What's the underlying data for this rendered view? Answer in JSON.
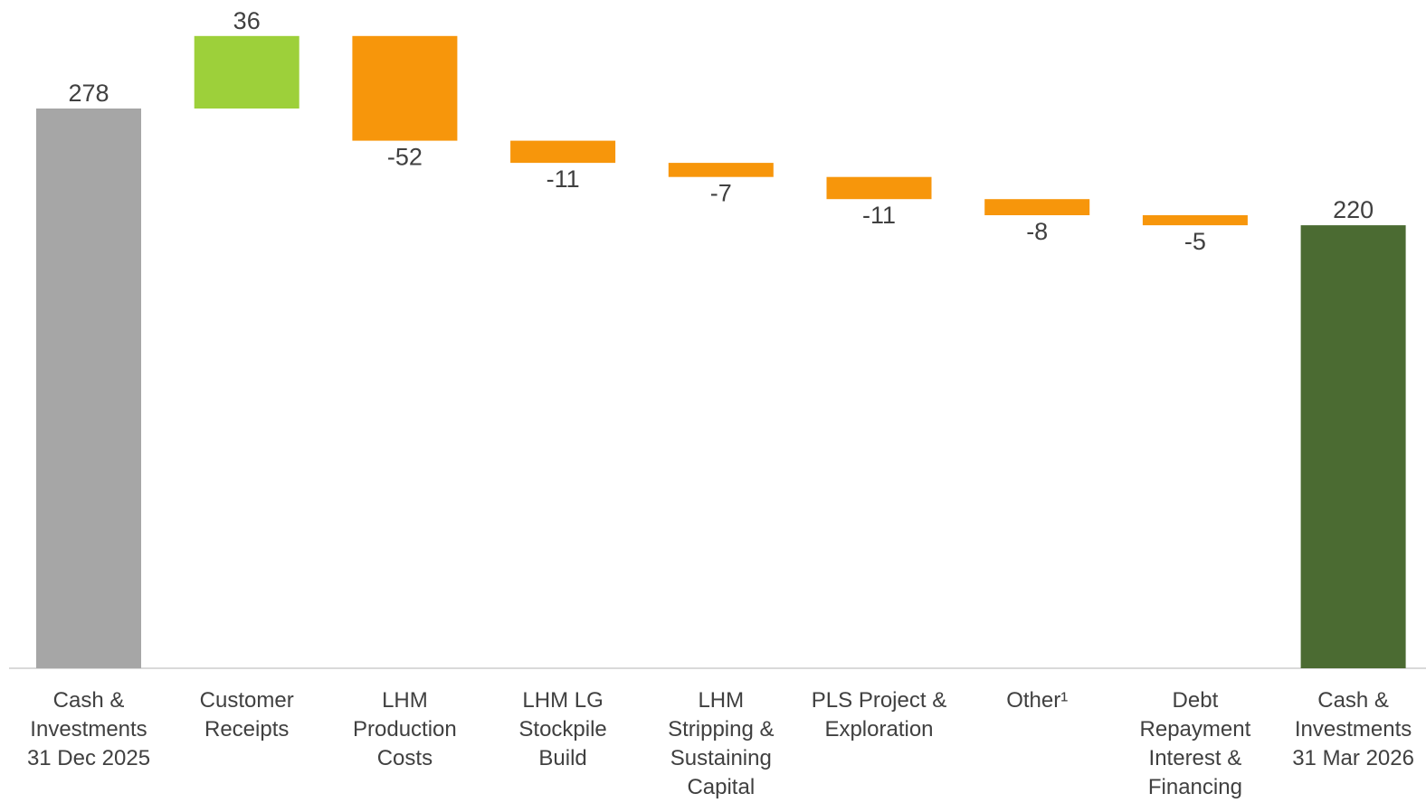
{
  "chart_data": {
    "type": "bar",
    "subtype": "waterfall",
    "title": "",
    "xlabel": "",
    "ylabel": "",
    "ylim": [
      0,
      316
    ],
    "grid": false,
    "legend": "none",
    "categories": [
      [
        "Cash &",
        "Investments",
        "31 Dec 2025"
      ],
      [
        "Customer",
        "Receipts"
      ],
      [
        "LHM",
        "Production",
        "Costs"
      ],
      [
        "LHM LG",
        "Stockpile",
        "Build"
      ],
      [
        "LHM",
        "Stripping &",
        "Sustaining",
        "Capital"
      ],
      [
        "PLS Project &",
        "Exploration"
      ],
      [
        "Other¹"
      ],
      [
        "Debt",
        "Repayment",
        "Interest &",
        "Financing"
      ],
      [
        "Cash &",
        "Investments",
        "31 Mar 2026"
      ]
    ],
    "values": [
      278,
      36,
      -52,
      -11,
      -7,
      -11,
      -8,
      -5,
      220
    ],
    "value_labels": [
      "278",
      "36",
      "-52",
      "-11",
      "-7",
      "-11",
      "-8",
      "-5",
      "220"
    ],
    "bar_kind": [
      "total",
      "increase",
      "decrease",
      "decrease",
      "decrease",
      "decrease",
      "decrease",
      "decrease",
      "total"
    ],
    "colors": {
      "start_total": "#a6a6a6",
      "increase": "#9dd03a",
      "decrease": "#f7960b",
      "end_total": "#4b6b32",
      "axis": "#d9d9d9",
      "text": "#404040"
    }
  }
}
